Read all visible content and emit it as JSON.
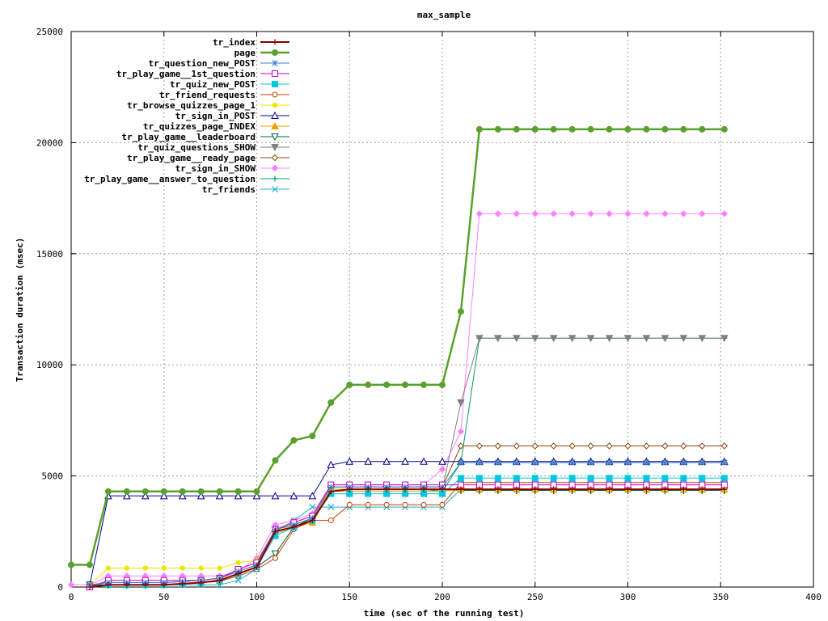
{
  "chart_data": {
    "type": "line",
    "title": "max_sample",
    "xlabel": "time (sec of the running test)",
    "ylabel": "Transaction duration (msec)",
    "xlim": [
      0,
      400
    ],
    "ylim": [
      0,
      25000
    ],
    "x_ticks": [
      0,
      50,
      100,
      150,
      200,
      250,
      300,
      350,
      400
    ],
    "y_ticks": [
      0,
      5000,
      10000,
      15000,
      20000,
      25000
    ],
    "grid": true,
    "legend_position": "top-left",
    "x": [
      0,
      10,
      20,
      30,
      40,
      50,
      60,
      70,
      80,
      90,
      100,
      110,
      120,
      130,
      140,
      150,
      160,
      170,
      180,
      190,
      200,
      210,
      220,
      230,
      240,
      250,
      260,
      270,
      280,
      290,
      300,
      310,
      320,
      330,
      340,
      352
    ],
    "series": [
      {
        "name": "tr_index",
        "color": "#8b0000",
        "marker": "plus",
        "width": 2,
        "x": [
          10,
          20,
          30,
          40,
          50,
          60,
          70,
          80,
          90,
          100,
          110,
          120,
          130,
          140,
          150,
          160,
          170,
          180,
          190,
          200,
          210,
          220,
          230,
          240,
          250,
          260,
          270,
          280,
          290,
          300,
          310,
          320,
          330,
          340,
          352
        ],
        "values": [
          0,
          100,
          100,
          100,
          100,
          150,
          200,
          300,
          600,
          900,
          2500,
          2700,
          3000,
          4300,
          4400,
          4400,
          4400,
          4400,
          4400,
          4400,
          4400,
          4400,
          4400,
          4400,
          4400,
          4400,
          4400,
          4400,
          4400,
          4400,
          4400,
          4400,
          4400,
          4400,
          4400
        ]
      },
      {
        "name": "page",
        "color": "#5aa02c",
        "marker": "filled-circle",
        "width": 2.5,
        "values": [
          1000,
          1000,
          4300,
          4300,
          4300,
          4300,
          4300,
          4300,
          4300,
          4300,
          4300,
          5700,
          6600,
          6800,
          8300,
          9100,
          9100,
          9100,
          9100,
          9100,
          9100,
          12400,
          20600,
          20600,
          20600,
          20600,
          20600,
          20600,
          20600,
          20600,
          20600,
          20600,
          20600,
          20600,
          20600,
          20600
        ]
      },
      {
        "name": "tr_question_new_POST",
        "color": "#3b82c4",
        "marker": "asterisk",
        "width": 1,
        "x": [
          10,
          20,
          30,
          40,
          50,
          60,
          70,
          80,
          90,
          100,
          110,
          120,
          130,
          140,
          150,
          160,
          170,
          180,
          190,
          200,
          210,
          220,
          230,
          240,
          250,
          260,
          270,
          280,
          290,
          300,
          310,
          320,
          330,
          340,
          352
        ],
        "values": [
          100,
          200,
          200,
          200,
          200,
          250,
          300,
          400,
          700,
          1000,
          2600,
          2800,
          3100,
          4500,
          4500,
          4500,
          4500,
          4500,
          4500,
          4500,
          5600,
          5600,
          5600,
          5600,
          5600,
          5600,
          5600,
          5600,
          5600,
          5600,
          5600,
          5600,
          5600,
          5600,
          5600
        ]
      },
      {
        "name": "tr_play_game__1st_question",
        "color": "#c000c0",
        "marker": "open-square",
        "width": 1,
        "x": [
          10,
          20,
          30,
          40,
          50,
          60,
          70,
          80,
          90,
          100,
          110,
          120,
          130,
          140,
          150,
          160,
          170,
          180,
          190,
          200,
          210,
          220,
          230,
          240,
          250,
          260,
          270,
          280,
          290,
          300,
          310,
          320,
          330,
          340,
          352
        ],
        "values": [
          0,
          300,
          300,
          300,
          300,
          300,
          300,
          400,
          800,
          1100,
          2600,
          2900,
          3200,
          4600,
          4600,
          4600,
          4600,
          4600,
          4600,
          4600,
          4600,
          4600,
          4600,
          4600,
          4600,
          4600,
          4600,
          4600,
          4600,
          4600,
          4600,
          4600,
          4600,
          4600,
          4600
        ]
      },
      {
        "name": "tr_quiz_new_POST",
        "color": "#00c8e0",
        "marker": "filled-square",
        "width": 1,
        "x": [
          10,
          20,
          30,
          40,
          50,
          60,
          70,
          80,
          90,
          100,
          110,
          120,
          130,
          140,
          150,
          160,
          170,
          180,
          190,
          200,
          210,
          220,
          230,
          240,
          250,
          260,
          270,
          280,
          290,
          300,
          310,
          320,
          330,
          340,
          352
        ],
        "values": [
          0,
          100,
          100,
          100,
          100,
          150,
          200,
          300,
          600,
          900,
          2300,
          2700,
          3000,
          4200,
          4200,
          4200,
          4200,
          4200,
          4200,
          4200,
          4900,
          4900,
          4900,
          4900,
          4900,
          4900,
          4900,
          4900,
          4900,
          4900,
          4900,
          4900,
          4900,
          4900,
          4900
        ]
      },
      {
        "name": "tr_friend_requests",
        "color": "#c04000",
        "marker": "open-circle",
        "width": 1,
        "x": [
          10,
          20,
          30,
          40,
          50,
          60,
          70,
          80,
          90,
          100,
          110,
          120,
          130,
          140,
          150,
          160,
          170,
          180,
          190,
          200,
          210,
          220,
          230,
          240,
          250,
          260,
          270,
          280,
          290,
          300,
          310,
          320,
          330,
          340,
          352
        ],
        "values": [
          0,
          100,
          100,
          100,
          100,
          150,
          200,
          250,
          500,
          800,
          1300,
          2600,
          3000,
          3000,
          3700,
          3700,
          3700,
          3700,
          3700,
          3700,
          4700,
          4700,
          4700,
          4700,
          4700,
          4700,
          4700,
          4700,
          4700,
          4700,
          4700,
          4700,
          4700,
          4700,
          4700
        ]
      },
      {
        "name": "tr_browse_quizzes_page_1",
        "color": "#e8e800",
        "marker": "filled-circle-small",
        "width": 1,
        "x": [
          10,
          20,
          30,
          40,
          50,
          60,
          70,
          80,
          90,
          100,
          110,
          120,
          130,
          140,
          150,
          160,
          170,
          180,
          190,
          200,
          210,
          220,
          230,
          240,
          250,
          260,
          270,
          280,
          290,
          300,
          310,
          320,
          330,
          340,
          352
        ],
        "values": [
          100,
          850,
          850,
          850,
          850,
          850,
          850,
          850,
          1100,
          1200,
          2500,
          2800,
          3100,
          4400,
          4400,
          4400,
          4400,
          4400,
          4400,
          4400,
          4400,
          4400,
          4400,
          4400,
          4400,
          4400,
          4400,
          4400,
          4400,
          4400,
          4400,
          4400,
          4400,
          4400,
          4400
        ]
      },
      {
        "name": "tr_sign_in_POST",
        "color": "#00008b",
        "marker": "open-triangle",
        "width": 1,
        "x": [
          10,
          20,
          30,
          40,
          50,
          60,
          70,
          80,
          90,
          100,
          110,
          120,
          130,
          140,
          150,
          160,
          170,
          180,
          190,
          200,
          210,
          220,
          230,
          240,
          250,
          260,
          270,
          280,
          290,
          300,
          310,
          320,
          330,
          340,
          352
        ],
        "values": [
          100,
          4100,
          4100,
          4100,
          4100,
          4100,
          4100,
          4100,
          4100,
          4100,
          4100,
          4100,
          4100,
          5500,
          5650,
          5650,
          5650,
          5650,
          5650,
          5650,
          5650,
          5650,
          5650,
          5650,
          5650,
          5650,
          5650,
          5650,
          5650,
          5650,
          5650,
          5650,
          5650,
          5650,
          5650
        ]
      },
      {
        "name": "tr_quizzes_page_INDEX",
        "color": "#f0a000",
        "marker": "filled-triangle",
        "width": 1,
        "x": [
          10,
          20,
          30,
          40,
          50,
          60,
          70,
          80,
          90,
          100,
          110,
          120,
          130,
          140,
          150,
          160,
          170,
          180,
          190,
          200,
          210,
          220,
          230,
          240,
          250,
          260,
          270,
          280,
          290,
          300,
          310,
          320,
          330,
          340,
          352
        ],
        "values": [
          0,
          100,
          100,
          100,
          100,
          150,
          200,
          300,
          600,
          900,
          2400,
          2700,
          2900,
          4300,
          4300,
          4300,
          4300,
          4300,
          4300,
          4300,
          4400,
          4400,
          4400,
          4400,
          4400,
          4400,
          4400,
          4400,
          4400,
          4400,
          4400,
          4400,
          4400,
          4400,
          4400
        ]
      },
      {
        "name": "tr_play_game__leaderboard",
        "color": "#006040",
        "marker": "open-down-triangle",
        "width": 1,
        "x": [
          10,
          20,
          30,
          40,
          50,
          60,
          70,
          80,
          90,
          100,
          110,
          120,
          130,
          140,
          150,
          160,
          170,
          180,
          190,
          200,
          210,
          220,
          230,
          240,
          250,
          260,
          270,
          280,
          290,
          300,
          310,
          320,
          330,
          340,
          352
        ],
        "values": [
          100,
          100,
          100,
          100,
          100,
          150,
          200,
          300,
          600,
          900,
          1500,
          2700,
          3100,
          4400,
          4400,
          4400,
          4400,
          4400,
          4400,
          4400,
          4350,
          4350,
          4350,
          4350,
          4350,
          4350,
          4350,
          4350,
          4350,
          4350,
          4350,
          4350,
          4350,
          4350,
          4350
        ]
      },
      {
        "name": "tr_quiz_questions_SHOW",
        "color": "#808080",
        "marker": "filled-down-triangle",
        "width": 1,
        "x": [
          10,
          20,
          30,
          40,
          50,
          60,
          70,
          80,
          90,
          100,
          110,
          120,
          130,
          140,
          150,
          160,
          170,
          180,
          190,
          200,
          210,
          220,
          230,
          240,
          250,
          260,
          270,
          280,
          290,
          300,
          310,
          320,
          330,
          340,
          352
        ],
        "values": [
          100,
          200,
          200,
          200,
          200,
          250,
          300,
          400,
          700,
          1000,
          2600,
          2800,
          3100,
          4400,
          4400,
          4400,
          4400,
          4400,
          4400,
          4400,
          8300,
          11200,
          11200,
          11200,
          11200,
          11200,
          11200,
          11200,
          11200,
          11200,
          11200,
          11200,
          11200,
          11200,
          11200
        ]
      },
      {
        "name": "tr_play_game__ready_page",
        "color": "#8b4513",
        "marker": "open-diamond",
        "width": 1,
        "x": [
          10,
          20,
          30,
          40,
          50,
          60,
          70,
          80,
          90,
          100,
          110,
          120,
          130,
          140,
          150,
          160,
          170,
          180,
          190,
          200,
          210,
          220,
          230,
          240,
          250,
          260,
          270,
          280,
          290,
          300,
          310,
          320,
          330,
          340,
          352
        ],
        "values": [
          100,
          200,
          200,
          200,
          200,
          250,
          300,
          400,
          700,
          1000,
          2600,
          2800,
          3100,
          4500,
          4500,
          4500,
          4500,
          4500,
          4500,
          4500,
          6350,
          6350,
          6350,
          6350,
          6350,
          6350,
          6350,
          6350,
          6350,
          6350,
          6350,
          6350,
          6350,
          6350,
          6350
        ]
      },
      {
        "name": "tr_sign_in_SHOW",
        "color": "#ff80ff",
        "marker": "filled-diamond",
        "width": 1,
        "values": [
          100,
          100,
          500,
          500,
          500,
          500,
          500,
          500,
          500,
          700,
          1300,
          2800,
          3000,
          3300,
          4600,
          4600,
          4600,
          4600,
          4600,
          4600,
          5300,
          7000,
          16800,
          16800,
          16800,
          16800,
          16800,
          16800,
          16800,
          16800,
          16800,
          16800,
          16800,
          16800,
          16800,
          16800
        ]
      },
      {
        "name": "tr_play_game__answer_to_question",
        "color": "#00a060",
        "marker": "plus",
        "width": 1,
        "x": [
          10,
          20,
          30,
          40,
          50,
          60,
          70,
          80,
          90,
          100,
          110,
          120,
          130,
          140,
          150,
          160,
          170,
          180,
          190,
          200,
          210,
          220,
          230,
          240,
          250,
          260,
          270,
          280,
          290,
          300,
          310,
          320,
          330,
          340,
          352
        ],
        "values": [
          100,
          200,
          200,
          200,
          200,
          250,
          300,
          400,
          700,
          1000,
          2600,
          2800,
          3100,
          4400,
          4400,
          4400,
          4400,
          4400,
          4400,
          4300,
          5600,
          11200,
          11200,
          11200,
          11200,
          11200,
          11200,
          11200,
          11200,
          11200,
          11200,
          11200,
          11200,
          11200,
          11200
        ]
      },
      {
        "name": "tr_friends",
        "color": "#20b0d0",
        "marker": "cross",
        "width": 1,
        "x": [
          10,
          20,
          30,
          40,
          50,
          60,
          70,
          80,
          90,
          100,
          110,
          120,
          130,
          140,
          150,
          160,
          170,
          180,
          190,
          200,
          210,
          220,
          230,
          240,
          250,
          260,
          270,
          280,
          290,
          300,
          310,
          320,
          330,
          340,
          352
        ],
        "values": [
          100,
          100,
          100,
          100,
          100,
          100,
          100,
          100,
          300,
          800,
          2500,
          3000,
          3600,
          3600,
          3600,
          3600,
          3600,
          3600,
          3600,
          3600,
          4400,
          4400,
          4400,
          4400,
          4400,
          4400,
          4400,
          4400,
          4400,
          4400,
          4400,
          4400,
          4400,
          4400,
          4400
        ]
      }
    ]
  }
}
